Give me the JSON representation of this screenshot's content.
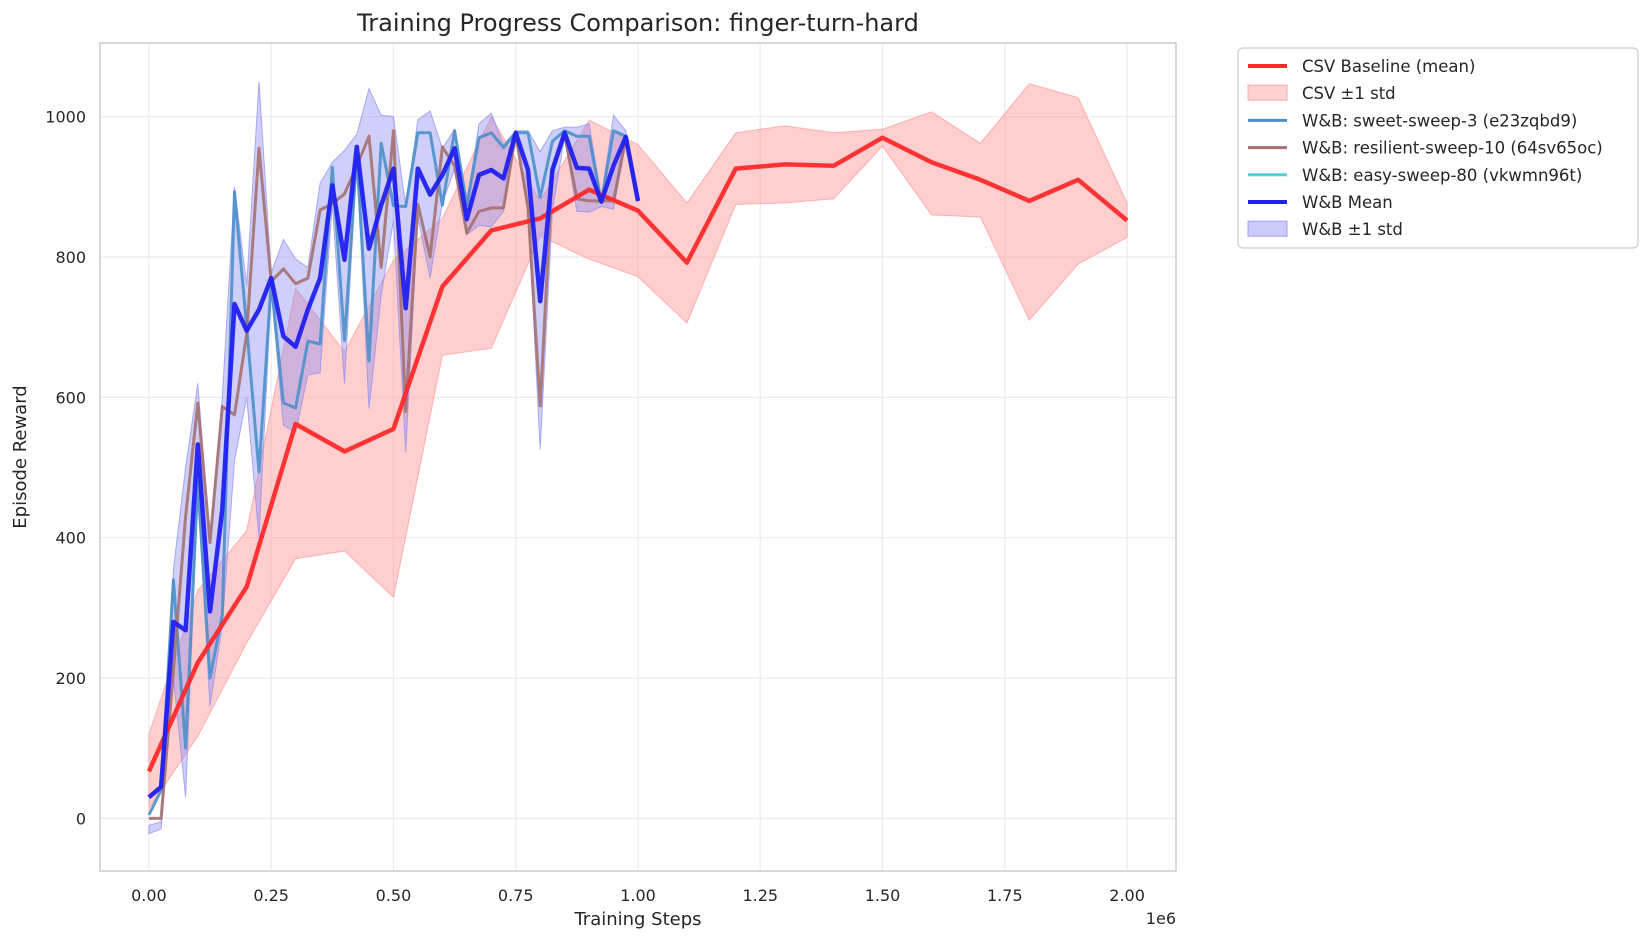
{
  "chart_data": {
    "type": "line",
    "title": "Training Progress Comparison: finger-turn-hard",
    "xlabel": "Training Steps",
    "ylabel": "Episode Reward",
    "x_offset_label": "1e6",
    "xlim": [
      -0.1,
      2.1
    ],
    "ylim": [
      -75,
      1105
    ],
    "x_ticks": [
      0.0,
      0.25,
      0.5,
      0.75,
      1.0,
      1.25,
      1.5,
      1.75,
      2.0
    ],
    "x_tick_labels": [
      "0.00",
      "0.25",
      "0.50",
      "0.75",
      "1.00",
      "1.25",
      "1.50",
      "1.75",
      "2.00"
    ],
    "y_ticks": [
      0,
      200,
      400,
      600,
      800,
      1000
    ],
    "y_tick_labels": [
      "0",
      "200",
      "400",
      "600",
      "800",
      "1000"
    ],
    "grid": true,
    "legend_position": "outside-right-top",
    "colors": {
      "csv_mean": "#ff2a2a",
      "csv_band": "#ff9999",
      "sweet": "#4c8fc9",
      "resilient": "#a47070",
      "easy": "#4fd0d8",
      "wb_mean": "#2020f0",
      "wb_band": "#8c8cf0"
    },
    "csv": {
      "x": [
        0.0,
        0.1,
        0.2,
        0.3,
        0.4,
        0.5,
        0.6,
        0.7,
        0.8,
        0.9,
        1.0,
        1.1,
        1.2,
        1.3,
        1.4,
        1.5,
        1.6,
        1.7,
        1.8,
        1.9,
        2.0
      ],
      "mean": [
        67,
        222,
        330,
        562,
        523,
        555,
        758,
        838,
        855,
        896,
        866,
        792,
        926,
        932,
        930,
        970,
        935,
        910,
        880,
        910,
        852
      ],
      "upper": [
        120,
        325,
        410,
        755,
        665,
        795,
        855,
        1000,
        880,
        995,
        960,
        877,
        977,
        987,
        977,
        982,
        1007,
        962,
        1047,
        1027,
        877
      ],
      "lower": [
        14,
        117,
        250,
        370,
        381,
        315,
        660,
        670,
        830,
        797,
        772,
        706,
        875,
        877,
        883,
        958,
        860,
        857,
        710,
        790,
        828
      ]
    },
    "wb_x": [
      0.0,
      0.025,
      0.05,
      0.075,
      0.1,
      0.125,
      0.15,
      0.175,
      0.2,
      0.225,
      0.25,
      0.275,
      0.3,
      0.325,
      0.35,
      0.375,
      0.4,
      0.425,
      0.45,
      0.475,
      0.5,
      0.525,
      0.55,
      0.575,
      0.6,
      0.625,
      0.65,
      0.675,
      0.7,
      0.725,
      0.75,
      0.775,
      0.8,
      0.825,
      0.85,
      0.875,
      0.9,
      0.925,
      0.95,
      0.975,
      1.0
    ],
    "series": [
      {
        "name": "W&B: sweet-sweep-3 (e23zqbd9)",
        "values": [
          5,
          40,
          340,
          100,
          480,
          200,
          290,
          893,
          700,
          494,
          765,
          592,
          585,
          680,
          676,
          928,
          681,
          946,
          652,
          962,
          873,
          872,
          977,
          977,
          874,
          980,
          874,
          970,
          977,
          956,
          977,
          977,
          885,
          965,
          980,
          972,
          972,
          878,
          980,
          972,
          880
        ]
      },
      {
        "name": "W&B: resilient-sweep-10 (64sv65oc)",
        "values": [
          0,
          0,
          210,
          430,
          592,
          393,
          587,
          575,
          690,
          955,
          765,
          783,
          762,
          770,
          867,
          876,
          890,
          930,
          972,
          785,
          980,
          580,
          875,
          800,
          957,
          930,
          834,
          865,
          870,
          870,
          975,
          870,
          588,
          924,
          974,
          883,
          880,
          880,
          880,
          970,
          880
        ]
      },
      {
        "name": "W&B: easy-sweep-80 (vkwmn96t)",
        "values": []
      }
    ],
    "wb_mean": {
      "name": "W&B Mean",
      "values": [
        30,
        45,
        280,
        268,
        533,
        295,
        440,
        733,
        695,
        725,
        770,
        687,
        672,
        725,
        770,
        902,
        796,
        957,
        812,
        874,
        926,
        727,
        926,
        889,
        917,
        955,
        854,
        917,
        924,
        912,
        977,
        924,
        737,
        924,
        977,
        927,
        926,
        879,
        930,
        971,
        880
      ]
    },
    "wb_band": {
      "upper": [
        -10,
        -5,
        355,
        500,
        620,
        395,
        600,
        900,
        760,
        1050,
        777,
        825,
        797,
        785,
        905,
        935,
        952,
        975,
        1040,
        1002,
        1000,
        872,
        996,
        1008,
        955,
        982,
        875,
        990,
        1005,
        960,
        980,
        980,
        950,
        980,
        985,
        985,
        990,
        885,
        1002,
        980,
        880
      ],
      "lower": [
        -22,
        -15,
        200,
        30,
        465,
        160,
        275,
        510,
        600,
        400,
        750,
        560,
        550,
        632,
        635,
        875,
        620,
        940,
        584,
        746,
        852,
        522,
        856,
        770,
        878,
        925,
        832,
        845,
        843,
        865,
        972,
        865,
        526,
        865,
        972,
        865,
        864,
        872,
        868,
        962,
        878
      ]
    },
    "legend": [
      {
        "label": "CSV Baseline (mean)",
        "kind": "line",
        "color_key": "csv_mean",
        "width": 4
      },
      {
        "label": "CSV ±1 std",
        "kind": "patch",
        "color_key": "csv_band"
      },
      {
        "label": "W&B: sweet-sweep-3 (e23zqbd9)",
        "kind": "line",
        "color_key": "sweet",
        "width": 3
      },
      {
        "label": "W&B: resilient-sweep-10 (64sv65oc)",
        "kind": "line",
        "color_key": "resilient",
        "width": 3
      },
      {
        "label": "W&B: easy-sweep-80 (vkwmn96t)",
        "kind": "line",
        "color_key": "easy",
        "width": 3
      },
      {
        "label": "W&B Mean",
        "kind": "line",
        "color_key": "wb_mean",
        "width": 4
      },
      {
        "label": "W&B ±1 std",
        "kind": "patch",
        "color_key": "wb_band"
      }
    ]
  }
}
